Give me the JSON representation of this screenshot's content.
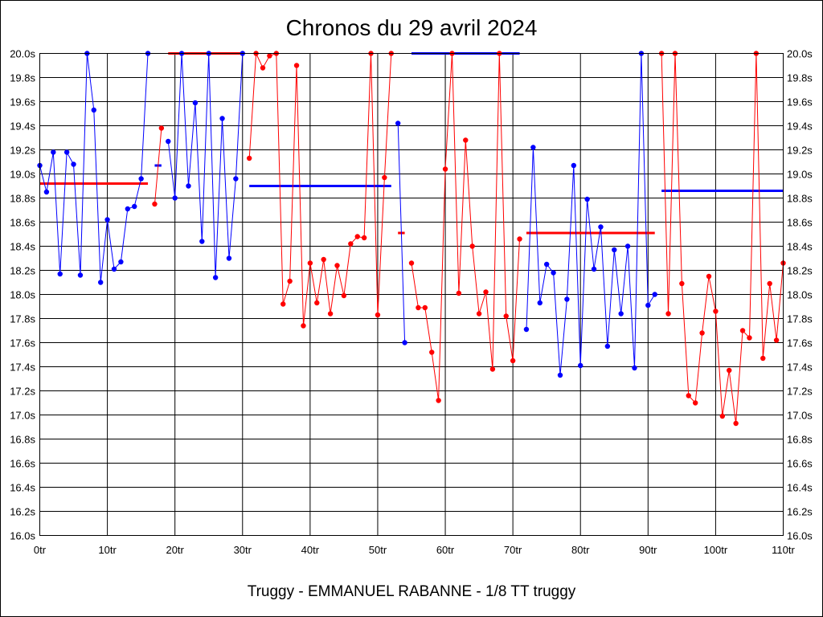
{
  "chart_data": {
    "type": "line",
    "title": "Chronos du 29 avril 2024",
    "subtitle": "Truggy - EMMANUEL RABANNE - 1/8 TT truggy",
    "xlabel": "",
    "ylabel": "",
    "xlim": [
      0,
      110
    ],
    "ylim": [
      16.0,
      20.0
    ],
    "grid": true,
    "legend": "none",
    "x_ticks": [
      {
        "value": 0,
        "label": "0tr"
      },
      {
        "value": 10,
        "label": "10tr"
      },
      {
        "value": 20,
        "label": "20tr"
      },
      {
        "value": 30,
        "label": "30tr"
      },
      {
        "value": 40,
        "label": "40tr"
      },
      {
        "value": 50,
        "label": "50tr"
      },
      {
        "value": 60,
        "label": "60tr"
      },
      {
        "value": 70,
        "label": "70tr"
      },
      {
        "value": 80,
        "label": "80tr"
      },
      {
        "value": 90,
        "label": "90tr"
      },
      {
        "value": 100,
        "label": "100tr"
      },
      {
        "value": 110,
        "label": "110tr"
      }
    ],
    "y_ticks": [
      {
        "value": 20.0,
        "label": "20.0s"
      },
      {
        "value": 19.8,
        "label": "19.8s"
      },
      {
        "value": 19.6,
        "label": "19.6s"
      },
      {
        "value": 19.4,
        "label": "19.4s"
      },
      {
        "value": 19.2,
        "label": "19.2s"
      },
      {
        "value": 19.0,
        "label": "19.0s"
      },
      {
        "value": 18.8,
        "label": "18.8s"
      },
      {
        "value": 18.6,
        "label": "18.6s"
      },
      {
        "value": 18.4,
        "label": "18.4s"
      },
      {
        "value": 18.2,
        "label": "18.2s"
      },
      {
        "value": 18.0,
        "label": "18.0s"
      },
      {
        "value": 17.8,
        "label": "17.8s"
      },
      {
        "value": 17.6,
        "label": "17.6s"
      },
      {
        "value": 17.4,
        "label": "17.4s"
      },
      {
        "value": 17.2,
        "label": "17.2s"
      },
      {
        "value": 17.0,
        "label": "17.0s"
      },
      {
        "value": 16.8,
        "label": "16.8s"
      },
      {
        "value": 16.6,
        "label": "16.6s"
      },
      {
        "value": 16.4,
        "label": "16.4s"
      },
      {
        "value": 16.2,
        "label": "16.2s"
      },
      {
        "value": 16.0,
        "label": "16.0s"
      }
    ],
    "series": [
      {
        "color": "#0000ff",
        "points": [
          [
            0,
            19.07
          ],
          [
            1,
            18.85
          ],
          [
            2,
            19.18
          ],
          [
            3,
            18.17
          ],
          [
            4,
            19.18
          ],
          [
            5,
            19.08
          ],
          [
            6,
            18.16
          ],
          [
            7,
            20.0
          ],
          [
            8,
            19.53
          ],
          [
            9,
            18.1
          ],
          [
            10,
            18.62
          ],
          [
            11,
            18.21
          ],
          [
            12,
            18.27
          ],
          [
            13,
            18.71
          ],
          [
            14,
            18.73
          ],
          [
            15,
            18.96
          ],
          [
            16,
            20.0
          ]
        ]
      },
      {
        "color": "#ff0000",
        "points": [
          [
            17,
            18.75
          ],
          [
            18,
            19.38
          ]
        ]
      },
      {
        "color": "#0000ff",
        "points": [
          [
            19,
            19.27
          ],
          [
            20,
            18.8
          ],
          [
            21,
            20.0
          ],
          [
            22,
            18.9
          ],
          [
            23,
            19.59
          ],
          [
            24,
            18.44
          ],
          [
            25,
            20.0
          ],
          [
            26,
            18.14
          ],
          [
            27,
            19.46
          ],
          [
            28,
            18.3
          ],
          [
            29,
            18.96
          ],
          [
            30,
            20.0
          ]
        ]
      },
      {
        "color": "#ff0000",
        "points": [
          [
            31,
            19.13
          ],
          [
            32,
            20.0
          ],
          [
            33,
            19.88
          ],
          [
            34,
            19.98
          ],
          [
            35,
            20.0
          ],
          [
            36,
            17.92
          ],
          [
            37,
            18.11
          ],
          [
            38,
            19.9
          ],
          [
            39,
            17.74
          ],
          [
            40,
            18.26
          ],
          [
            41,
            17.93
          ],
          [
            42,
            18.29
          ],
          [
            43,
            17.84
          ],
          [
            44,
            18.24
          ],
          [
            45,
            17.99
          ],
          [
            46,
            18.42
          ],
          [
            47,
            18.48
          ],
          [
            48,
            18.47
          ],
          [
            49,
            20.0
          ],
          [
            50,
            17.83
          ],
          [
            51,
            18.97
          ],
          [
            52,
            20.0
          ]
        ]
      },
      {
        "color": "#0000ff",
        "points": [
          [
            53,
            19.42
          ],
          [
            54,
            17.6
          ]
        ]
      },
      {
        "color": "#ff0000",
        "points": [
          [
            55,
            18.26
          ],
          [
            56,
            17.89
          ],
          [
            57,
            17.89
          ],
          [
            58,
            17.52
          ],
          [
            59,
            17.12
          ],
          [
            60,
            19.04
          ],
          [
            61,
            20.0
          ],
          [
            62,
            18.01
          ],
          [
            63,
            19.28
          ],
          [
            64,
            18.4
          ],
          [
            65,
            17.84
          ],
          [
            66,
            18.02
          ],
          [
            67,
            17.38
          ],
          [
            68,
            20.0
          ],
          [
            69,
            17.82
          ],
          [
            70,
            17.45
          ],
          [
            71,
            18.46
          ]
        ]
      },
      {
        "color": "#0000ff",
        "points": [
          [
            72,
            17.71
          ],
          [
            73,
            19.22
          ],
          [
            74,
            17.93
          ],
          [
            75,
            18.25
          ],
          [
            76,
            18.18
          ],
          [
            77,
            17.33
          ],
          [
            78,
            17.96
          ],
          [
            79,
            19.07
          ],
          [
            80,
            17.41
          ],
          [
            81,
            18.79
          ],
          [
            82,
            18.21
          ],
          [
            83,
            18.56
          ],
          [
            84,
            17.57
          ],
          [
            85,
            18.37
          ],
          [
            86,
            17.84
          ],
          [
            87,
            18.4
          ],
          [
            88,
            17.39
          ],
          [
            89,
            20.0
          ],
          [
            90,
            17.91
          ],
          [
            91,
            18.0
          ]
        ]
      },
      {
        "color": "#ff0000",
        "points": [
          [
            92,
            20.0
          ],
          [
            93,
            17.84
          ],
          [
            94,
            20.0
          ],
          [
            95,
            18.09
          ],
          [
            96,
            17.16
          ],
          [
            97,
            17.1
          ],
          [
            98,
            17.68
          ],
          [
            99,
            18.15
          ],
          [
            100,
            17.86
          ],
          [
            101,
            16.99
          ],
          [
            102,
            17.37
          ],
          [
            103,
            16.93
          ],
          [
            104,
            17.7
          ],
          [
            105,
            17.64
          ],
          [
            106,
            20.0
          ],
          [
            107,
            17.47
          ],
          [
            108,
            18.09
          ],
          [
            109,
            17.62
          ],
          [
            110,
            18.26
          ]
        ]
      }
    ],
    "averages": [
      {
        "color": "#ff0000",
        "x": [
          0,
          16
        ],
        "y": 18.92
      },
      {
        "color": "#0000ff",
        "x": [
          17,
          18
        ],
        "y": 19.07
      },
      {
        "color": "#ff0000",
        "x": [
          19,
          30
        ],
        "y": 20.0
      },
      {
        "color": "#0000ff",
        "x": [
          31,
          52
        ],
        "y": 18.9
      },
      {
        "color": "#ff0000",
        "x": [
          53,
          54
        ],
        "y": 18.51
      },
      {
        "color": "#0000ff",
        "x": [
          55,
          71
        ],
        "y": 20.0
      },
      {
        "color": "#ff0000",
        "x": [
          72,
          91
        ],
        "y": 18.51
      },
      {
        "color": "#0000ff",
        "x": [
          92,
          110
        ],
        "y": 18.86
      }
    ]
  }
}
